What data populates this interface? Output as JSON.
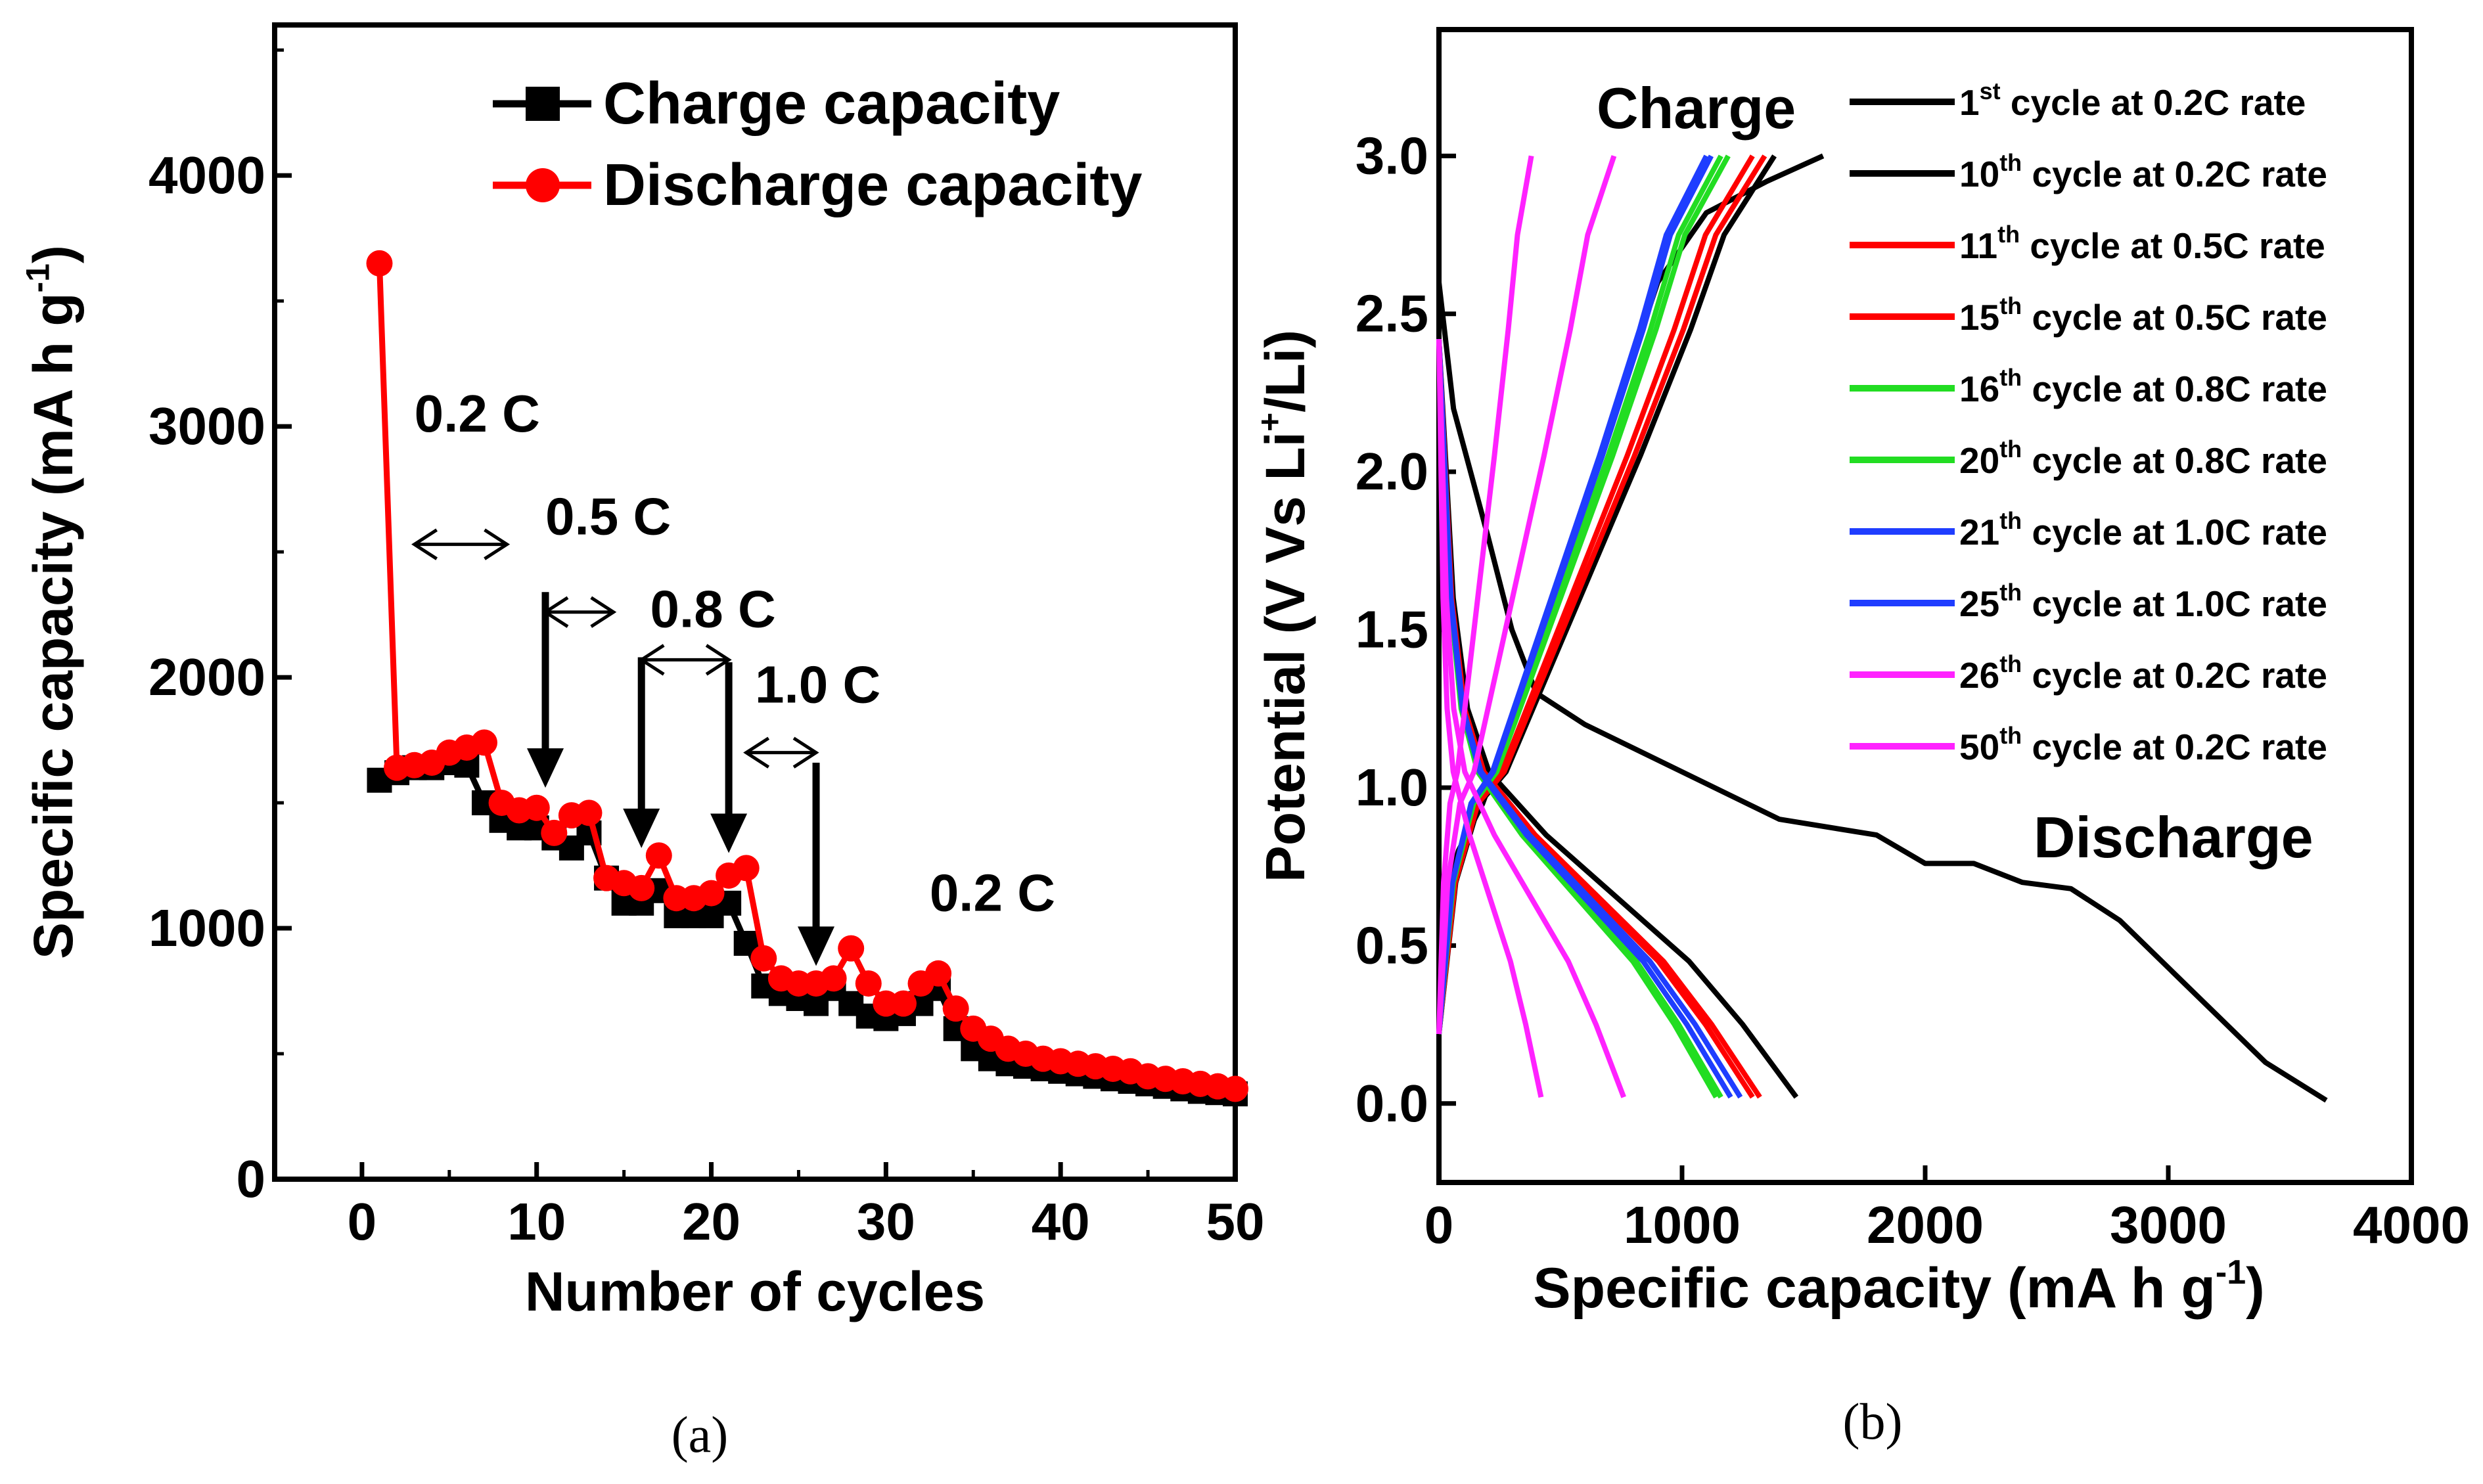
{
  "colors": {
    "black": "#000000",
    "red": "#ff0000",
    "green": "#22dd22",
    "blue": "#1f3dff",
    "magenta": "#ff22ff"
  },
  "chart_data": [
    {
      "id": "a",
      "type": "line",
      "caption": "(a)",
      "xlabel": "Number of cycles",
      "ylabel_main": "Specific capacity (mA h g",
      "ylabel_sup": "-1",
      "ylabel_tail": ")",
      "xlim": [
        -5,
        50
      ],
      "ylim": [
        0,
        4600
      ],
      "xticks": [
        0,
        10,
        20,
        30,
        40,
        50
      ],
      "yticks": [
        0,
        1000,
        2000,
        3000,
        4000
      ],
      "legend": [
        {
          "label": "Charge capacity",
          "color": "#000000",
          "marker": "square"
        },
        {
          "label": "Discharge capacity",
          "color": "#ff0000",
          "marker": "circle"
        }
      ],
      "series": [
        {
          "name": "Charge capacity",
          "color": "#000000",
          "marker": "square",
          "x": [
            1,
            2,
            3,
            4,
            5,
            6,
            7,
            8,
            9,
            10,
            11,
            12,
            13,
            14,
            15,
            16,
            17,
            18,
            19,
            20,
            21,
            22,
            23,
            24,
            25,
            26,
            27,
            28,
            29,
            30,
            31,
            32,
            33,
            34,
            35,
            36,
            37,
            38,
            39,
            40,
            41,
            42,
            43,
            44,
            45,
            46,
            47,
            48,
            49,
            50
          ],
          "y": [
            1590,
            1620,
            1640,
            1640,
            1660,
            1650,
            1500,
            1430,
            1400,
            1400,
            1360,
            1320,
            1380,
            1200,
            1100,
            1100,
            1150,
            1050,
            1050,
            1050,
            1100,
            940,
            770,
            740,
            720,
            700,
            760,
            700,
            650,
            640,
            660,
            700,
            760,
            600,
            520,
            480,
            460,
            450,
            440,
            430,
            420,
            410,
            400,
            390,
            380,
            370,
            360,
            350,
            345,
            340
          ]
        },
        {
          "name": "Discharge capacity",
          "color": "#ff0000",
          "marker": "circle",
          "x": [
            1,
            2,
            3,
            4,
            5,
            6,
            7,
            8,
            9,
            10,
            11,
            12,
            13,
            14,
            15,
            16,
            17,
            18,
            19,
            20,
            21,
            22,
            23,
            24,
            25,
            26,
            27,
            28,
            29,
            30,
            31,
            32,
            33,
            34,
            35,
            36,
            37,
            38,
            39,
            40,
            41,
            42,
            43,
            44,
            45,
            46,
            47,
            48,
            49,
            50
          ],
          "y": [
            3650,
            1640,
            1650,
            1660,
            1700,
            1720,
            1740,
            1500,
            1470,
            1480,
            1380,
            1450,
            1460,
            1200,
            1180,
            1160,
            1290,
            1120,
            1120,
            1140,
            1210,
            1240,
            880,
            800,
            780,
            780,
            800,
            920,
            780,
            700,
            700,
            780,
            820,
            680,
            600,
            560,
            520,
            500,
            480,
            470,
            460,
            450,
            440,
            430,
            410,
            400,
            390,
            380,
            370,
            360
          ]
        }
      ],
      "annotations": [
        {
          "text": "0.2 C",
          "x": 3.0,
          "y": 2980
        },
        {
          "text": "0.5 C",
          "x": 10.5,
          "y": 2570
        },
        {
          "text": "0.8 C",
          "x": 16.5,
          "y": 2200
        },
        {
          "text": "1.0 C",
          "x": 22.5,
          "y": 1900
        },
        {
          "text": "0.2 C",
          "x": 32.5,
          "y": 1070
        }
      ],
      "double_arrows": [
        [
          3,
          8.3,
          2530
        ],
        [
          10.5,
          14.4,
          2260
        ],
        [
          16,
          21,
          2070
        ],
        [
          22,
          26,
          1700
        ]
      ],
      "down_arrows": [
        [
          10.5,
          2340,
          1560
        ],
        [
          16,
          2080,
          1320
        ],
        [
          21,
          2060,
          1300
        ],
        [
          26,
          1660,
          850
        ]
      ]
    },
    {
      "id": "b",
      "type": "line",
      "caption": "(b)",
      "xlabel_main": "Specific capacity (mA h g",
      "xlabel_sup": "-1",
      "xlabel_tail": ")",
      "ylabel_main": "Potential (V Vs Li",
      "ylabel_sup": "+",
      "ylabel_tail": "/Li)",
      "xlim": [
        0,
        4000
      ],
      "ylim": [
        -0.25,
        3.4
      ],
      "xticks": [
        0,
        1000,
        2000,
        3000,
        4000
      ],
      "yticks": [
        "0.0",
        "0.5",
        "1.0",
        "1.5",
        "2.0",
        "2.5",
        "3.0"
      ],
      "text_charge": "Charge",
      "text_discharge": "Discharge",
      "series": [
        {
          "name": "1st cycle at 0.2C rate",
          "label_num": "1",
          "label_sup": "st",
          "label_rest": "cycle at 0.2C rate",
          "color": "#000000",
          "charge_cap": 1580,
          "charge_knee": [
            900,
            2.6
          ],
          "discharge": [
            [
              0,
              2.6
            ],
            [
              60,
              2.2
            ],
            [
              200,
              1.8
            ],
            [
              300,
              1.5
            ],
            [
              400,
              1.3
            ],
            [
              600,
              1.2
            ],
            [
              1000,
              1.05
            ],
            [
              1400,
              0.9
            ],
            [
              1800,
              0.85
            ],
            [
              2000,
              0.76
            ],
            [
              2200,
              0.76
            ],
            [
              2400,
              0.7
            ],
            [
              2600,
              0.68
            ],
            [
              2800,
              0.58
            ],
            [
              3000,
              0.43
            ],
            [
              3200,
              0.28
            ],
            [
              3400,
              0.13
            ],
            [
              3650,
              0.01
            ]
          ]
        },
        {
          "name": "10th cycle at 0.2C rate",
          "label_num": "10",
          "label_sup": "th",
          "label_rest": "cycle at 0.2C rate",
          "color": "#000000",
          "charge_cap": 1380,
          "discharge_cap": 1470
        },
        {
          "name": "11th cycle at 0.5C rate",
          "label_num": "11",
          "label_sup": "th",
          "label_rest": "cycle at 0.5C rate",
          "color": "#ff0000",
          "charge_cap": 1340,
          "discharge_cap": 1320
        },
        {
          "name": "15th cycle at 0.5C rate",
          "label_num": "15",
          "label_sup": "th",
          "label_rest": "cycle at 0.5C rate",
          "color": "#ff0000",
          "charge_cap": 1290,
          "discharge_cap": 1290
        },
        {
          "name": "16th cycle at 0.8C rate",
          "label_num": "16",
          "label_sup": "th",
          "label_rest": "cycle at 0.8C rate",
          "color": "#22dd22",
          "charge_cap": 1190,
          "discharge_cap": 1160
        },
        {
          "name": "20th cycle at 0.8C rate",
          "label_num": "20",
          "label_sup": "th",
          "label_rest": "cycle at 0.8C rate",
          "color": "#22dd22",
          "charge_cap": 1160,
          "discharge_cap": 1140
        },
        {
          "name": "21th cycle at 1.0C rate",
          "label_num": "21",
          "label_sup": "th",
          "label_rest": "cycle at 1.0C rate",
          "color": "#1f3dff",
          "charge_cap": 1120,
          "discharge_cap": 1240
        },
        {
          "name": "25th cycle at 1.0C rate",
          "label_num": "25",
          "label_sup": "th",
          "label_rest": "cycle at 1.0C rate",
          "color": "#1f3dff",
          "charge_cap": 1100,
          "discharge_cap": 1200
        },
        {
          "name": "26th cycle at 0.2C rate",
          "label_num": "26",
          "label_sup": "th",
          "label_rest": "cycle at 0.2C rate",
          "color": "#ff22ff",
          "charge_cap": 720,
          "discharge_cap": 760
        },
        {
          "name": "50th cycle at 0.2C rate",
          "label_num": "50",
          "label_sup": "th",
          "label_rest": "cycle at 0.2C rate",
          "color": "#ff22ff",
          "charge_cap": 380,
          "discharge_cap": 420
        }
      ]
    }
  ]
}
